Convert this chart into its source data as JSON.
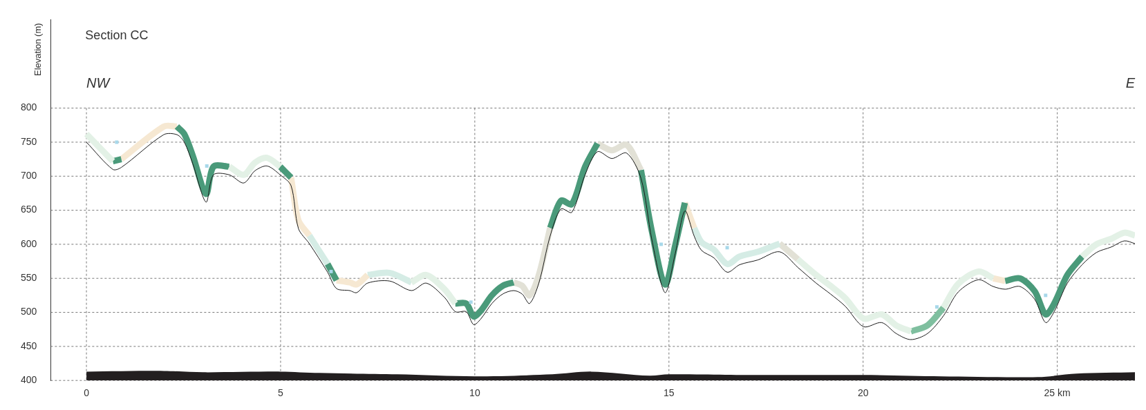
{
  "chart_data": {
    "type": "line",
    "title": "Section CC",
    "ylabel": "Elevation (m)",
    "annotations": [
      "NW",
      "E"
    ],
    "x": [
      0,
      0.68,
      0.9,
      1.99,
      2.33,
      2.52,
      2.74,
      3.08,
      3.27,
      3.68,
      4.05,
      4.34,
      4.65,
      4.99,
      5.27,
      5.46,
      5.74,
      6.21,
      6.44,
      6.78,
      6.96,
      7.24,
      7.81,
      8.37,
      8.75,
      9.22,
      9.5,
      9.78,
      9.97,
      10.15,
      10.44,
      10.72,
      11.0,
      11.22,
      11.41,
      11.65,
      11.94,
      12.22,
      12.5,
      12.84,
      13.16,
      13.53,
      13.91,
      14.28,
      14.56,
      14.9,
      15.16,
      15.41,
      15.65,
      15.84,
      16.16,
      16.5,
      16.82,
      17.29,
      17.85,
      18.32,
      18.79,
      19.16,
      19.54,
      20.01,
      20.48,
      20.85,
      21.23,
      21.66,
      22.07,
      22.45,
      22.97,
      23.35,
      23.66,
      24.04,
      24.42,
      24.7,
      24.92,
      25.26,
      25.64,
      26.01,
      26.39,
      26.73,
      27.0
    ],
    "series": [
      {
        "type": "area",
        "color": "#231f20",
        "x": [
          0,
          2,
          3,
          5,
          6,
          8,
          10,
          12,
          13,
          14.5,
          15,
          17,
          20,
          22,
          24.5,
          25.5,
          27
        ],
        "values": [
          413,
          414,
          412,
          413,
          411,
          409,
          406,
          409,
          413,
          407,
          409,
          408,
          408,
          406,
          405,
          410,
          412
        ]
      },
      {
        "type": "line",
        "color": "#e3f1e6",
        "values": [
          762,
          722,
          null,
          null,
          null,
          null,
          null,
          null,
          null,
          714,
          702,
          720,
          727,
          714,
          null,
          null,
          null,
          null,
          null,
          null,
          null,
          null,
          null,
          544,
          555,
          534,
          513,
          null,
          null,
          null,
          null,
          null,
          null,
          null,
          null,
          null,
          null,
          null,
          null,
          null,
          null,
          null,
          null,
          null,
          null,
          null,
          null,
          null,
          null,
          null,
          null,
          null,
          null,
          null,
          null,
          578,
          555,
          539,
          521,
          491,
          497,
          481,
          472,
          null,
          507,
          542,
          560,
          550,
          null,
          null,
          null,
          null,
          null,
          null,
          582,
          600,
          608,
          617,
          613
        ]
      },
      {
        "type": "line",
        "color": "#4a9a7a",
        "values": [
          null,
          722,
          725,
          null,
          773,
          762,
          730,
          674,
          714,
          714,
          null,
          null,
          null,
          714,
          698,
          null,
          null,
          571,
          547,
          null,
          null,
          null,
          null,
          null,
          null,
          null,
          513,
          513,
          494,
          502,
          525,
          539,
          544,
          null,
          null,
          null,
          624,
          664,
          659,
          714,
          748,
          null,
          null,
          709,
          619,
          541,
          598,
          661,
          null,
          null,
          null,
          null,
          null,
          null,
          null,
          null,
          null,
          null,
          null,
          null,
          null,
          null,
          null,
          null,
          null,
          null,
          null,
          null,
          546,
          550,
          531,
          497,
          513,
          555,
          582,
          null,
          null,
          null,
          null
        ]
      },
      {
        "type": "line",
        "color": "#f6e8d2",
        "values": [
          null,
          null,
          725,
          773,
          773,
          null,
          null,
          null,
          null,
          null,
          null,
          null,
          null,
          null,
          698,
          635,
          613,
          null,
          547,
          544,
          541,
          555,
          null,
          null,
          null,
          null,
          null,
          null,
          null,
          null,
          null,
          null,
          null,
          null,
          null,
          null,
          null,
          null,
          null,
          null,
          null,
          null,
          null,
          null,
          null,
          null,
          null,
          661,
          624,
          null,
          null,
          null,
          null,
          null,
          null,
          null,
          null,
          null,
          null,
          null,
          null,
          null,
          null,
          null,
          null,
          null,
          null,
          550,
          546,
          null,
          null,
          null,
          null,
          null,
          null,
          null,
          null,
          null,
          null
        ]
      },
      {
        "type": "line",
        "color": "#d5ece5",
        "values": [
          null,
          null,
          null,
          null,
          null,
          null,
          null,
          null,
          null,
          null,
          null,
          null,
          null,
          null,
          null,
          null,
          613,
          571,
          null,
          null,
          null,
          555,
          558,
          544,
          null,
          null,
          null,
          null,
          null,
          null,
          null,
          null,
          null,
          null,
          null,
          null,
          null,
          null,
          null,
          null,
          null,
          null,
          null,
          null,
          null,
          null,
          null,
          null,
          624,
          603,
          592,
          571,
          582,
          589,
          601,
          null,
          null,
          null,
          null,
          null,
          null,
          null,
          null,
          null,
          null,
          null,
          null,
          null,
          null,
          null,
          null,
          null,
          null,
          null,
          null,
          null,
          null,
          null,
          null
        ]
      },
      {
        "type": "line",
        "color": "#e2e1d6",
        "values": [
          null,
          null,
          null,
          null,
          null,
          null,
          null,
          null,
          null,
          null,
          null,
          null,
          null,
          null,
          null,
          null,
          null,
          null,
          null,
          null,
          null,
          null,
          null,
          null,
          null,
          null,
          null,
          null,
          null,
          null,
          null,
          null,
          544,
          539,
          525,
          555,
          624,
          null,
          null,
          null,
          748,
          738,
          746,
          709,
          null,
          null,
          null,
          null,
          null,
          null,
          null,
          null,
          null,
          null,
          601,
          578,
          null,
          null,
          null,
          null,
          null,
          null,
          null,
          null,
          null,
          null,
          null,
          null,
          null,
          null,
          null,
          null,
          null,
          null,
          null,
          null,
          null,
          null,
          null
        ]
      },
      {
        "type": "line",
        "color": "#7fbf9f",
        "values": [
          null,
          null,
          null,
          null,
          null,
          null,
          null,
          null,
          null,
          null,
          null,
          null,
          null,
          null,
          null,
          null,
          null,
          null,
          null,
          null,
          null,
          null,
          null,
          null,
          null,
          null,
          null,
          null,
          null,
          null,
          null,
          null,
          null,
          null,
          null,
          null,
          null,
          null,
          null,
          null,
          null,
          null,
          null,
          null,
          null,
          null,
          null,
          null,
          null,
          null,
          null,
          null,
          null,
          null,
          null,
          null,
          null,
          null,
          null,
          null,
          null,
          null,
          472,
          481,
          507,
          null,
          null,
          null,
          null,
          null,
          null,
          null,
          null,
          null,
          null,
          null,
          null,
          null,
          null
        ]
      },
      {
        "color": "#1a1a1a",
        "values": [
          750,
          710,
          713,
          761,
          761,
          750,
          718,
          662,
          702,
          702,
          690,
          708,
          715,
          702,
          686,
          623,
          601,
          559,
          535,
          532,
          529,
          543,
          546,
          532,
          543,
          522,
          501,
          501,
          482,
          490,
          513,
          527,
          532,
          527,
          513,
          543,
          612,
          652,
          647,
          702,
          736,
          726,
          734,
          697,
          607,
          529,
          586,
          649,
          612,
          591,
          580,
          559,
          570,
          577,
          589,
          566,
          543,
          527,
          509,
          479,
          485,
          469,
          460,
          469,
          495,
          530,
          548,
          538,
          534,
          538,
          519,
          485,
          501,
          543,
          570,
          588,
          596,
          605,
          601
        ]
      },
      {
        "type": "scatter",
        "color": "#a8d8ea",
        "x": [
          0.78,
          3.1,
          6.3,
          9.9,
          14.8,
          16.5,
          21.9,
          24.7
        ],
        "values": [
          750,
          715,
          560,
          515,
          600,
          595,
          508,
          525
        ]
      }
    ],
    "xlim": [
      -0.92,
      27
    ],
    "ylim": [
      400,
      930
    ],
    "xticks": [
      0,
      5,
      10,
      15,
      20,
      {
        "value": 25,
        "label": "25 km"
      }
    ],
    "yticks": [
      400,
      450,
      500,
      550,
      600,
      650,
      700,
      750,
      800
    ],
    "grid": true,
    "legend": false
  }
}
